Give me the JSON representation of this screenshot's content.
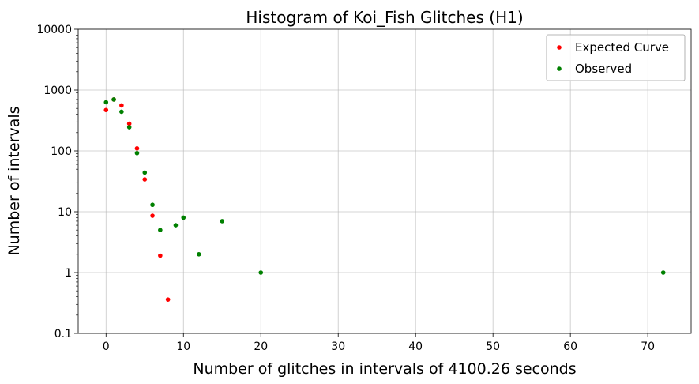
{
  "chart_data": {
    "type": "scatter",
    "title": "Histogram of Koi_Fish Glitches (H1)",
    "xlabel": "Number of glitches in intervals of 4100.26 seconds",
    "ylabel": "Number of intervals",
    "xlim": [
      -3.6,
      75.6
    ],
    "ylim": [
      0.1,
      10000
    ],
    "yscale": "log",
    "grid": true,
    "legend_position": "top-right",
    "x_ticks": [
      0,
      10,
      20,
      30,
      40,
      50,
      60,
      70
    ],
    "x_tick_labels": [
      "0",
      "10",
      "20",
      "30",
      "40",
      "50",
      "60",
      "70"
    ],
    "y_ticks": [
      0.1,
      1,
      10,
      100,
      1000,
      10000
    ],
    "y_tick_labels": [
      "0.1",
      "1",
      "10",
      "100",
      "1000",
      "10000"
    ],
    "series": [
      {
        "name": "Expected Curve",
        "color": "#ff0000",
        "points": [
          {
            "x": 0,
            "y": 470
          },
          {
            "x": 1,
            "y": 700
          },
          {
            "x": 2,
            "y": 560
          },
          {
            "x": 3,
            "y": 280
          },
          {
            "x": 4,
            "y": 110
          },
          {
            "x": 5,
            "y": 34
          },
          {
            "x": 6,
            "y": 8.6
          },
          {
            "x": 7,
            "y": 1.9
          },
          {
            "x": 8,
            "y": 0.36
          }
        ]
      },
      {
        "name": "Observed",
        "color": "#008000",
        "points": [
          {
            "x": 0,
            "y": 630
          },
          {
            "x": 1,
            "y": 700
          },
          {
            "x": 2,
            "y": 440
          },
          {
            "x": 3,
            "y": 245
          },
          {
            "x": 4,
            "y": 92
          },
          {
            "x": 5,
            "y": 44
          },
          {
            "x": 6,
            "y": 13
          },
          {
            "x": 7,
            "y": 5
          },
          {
            "x": 9,
            "y": 6
          },
          {
            "x": 10,
            "y": 8
          },
          {
            "x": 12,
            "y": 2
          },
          {
            "x": 15,
            "y": 7
          },
          {
            "x": 20,
            "y": 1
          },
          {
            "x": 72,
            "y": 1
          }
        ]
      }
    ]
  }
}
